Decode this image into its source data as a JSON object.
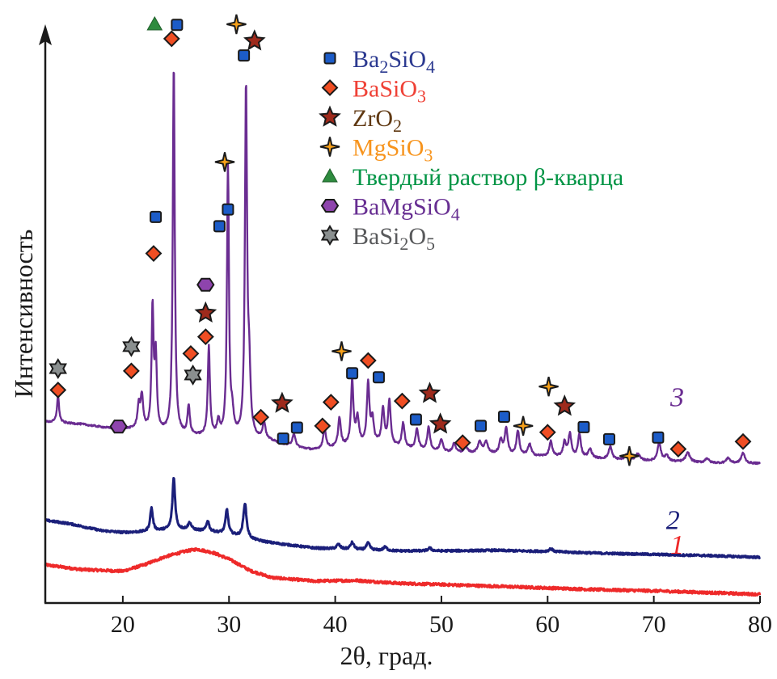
{
  "chart_data": {
    "type": "line",
    "title": "",
    "xlabel": "2θ, град.",
    "ylabel": "Интенсивность",
    "xlim": [
      12.7,
      80
    ],
    "ylim": [
      0,
      100
    ],
    "xticks": [
      20,
      30,
      40,
      50,
      60,
      70,
      80
    ],
    "grid": false,
    "legend_position": "top-right",
    "legend": [
      {
        "phase": "Ba2SiO4",
        "parts": [
          [
            "Ba",
            ""
          ],
          [
            "2",
            "sub"
          ],
          [
            "SiO",
            ""
          ],
          [
            "4",
            "sub"
          ]
        ],
        "marker": "square",
        "color": "#2b3990",
        "fill": "#1c5cc8"
      },
      {
        "phase": "BaSiO3",
        "parts": [
          [
            "BaSiO",
            ""
          ],
          [
            "3",
            "sub"
          ]
        ],
        "marker": "diamond",
        "color": "#ef4136",
        "fill": "#f04e23"
      },
      {
        "phase": "ZrO2",
        "parts": [
          [
            "ZrO",
            ""
          ],
          [
            "2",
            "sub"
          ]
        ],
        "marker": "star5",
        "color": "#603913",
        "fill": "#9e2a1c"
      },
      {
        "phase": "MgSiO3",
        "parts": [
          [
            "MgSiO",
            ""
          ],
          [
            "3",
            "sub"
          ]
        ],
        "marker": "star4",
        "color": "#f7941d",
        "fill": "#f7a11a"
      },
      {
        "phase": "Твердый раствор β-кварца",
        "parts": [
          [
            "Твердый раствор β-кварца",
            ""
          ]
        ],
        "marker": "triangle",
        "color": "#009444",
        "fill": "#2e8b3e"
      },
      {
        "phase": "BaMgSiO4",
        "parts": [
          [
            "BaMgSiO",
            ""
          ],
          [
            "4",
            "sub"
          ]
        ],
        "marker": "hexagon",
        "color": "#662d91",
        "fill": "#8e44ad"
      },
      {
        "phase": "BaSi2O5",
        "parts": [
          [
            "BaSi",
            ""
          ],
          [
            "2",
            "sub"
          ],
          [
            "O",
            ""
          ],
          [
            "5",
            "sub"
          ]
        ],
        "marker": "star6",
        "color": "#58595b",
        "fill": "#8a8f8f"
      }
    ],
    "series": [
      {
        "name": "1",
        "label": "1",
        "color": "#ee2a2a",
        "label_at": [
          72.2,
          8.5
        ],
        "baseline": [
          [
            12.7,
            6.6
          ],
          [
            16,
            5.8
          ],
          [
            20,
            5.5
          ],
          [
            22,
            6.6
          ],
          [
            24,
            8.0
          ],
          [
            26,
            9.0
          ],
          [
            27,
            9.3
          ],
          [
            28.5,
            8.7
          ],
          [
            30,
            7.6
          ],
          [
            32,
            5.6
          ],
          [
            34,
            4.4
          ],
          [
            38,
            3.8
          ],
          [
            42,
            3.9
          ],
          [
            46,
            3.4
          ],
          [
            50,
            3.2
          ],
          [
            55,
            2.9
          ],
          [
            60,
            2.6
          ],
          [
            65,
            2.3
          ],
          [
            70,
            2.1
          ],
          [
            75,
            1.8
          ],
          [
            80,
            1.5
          ]
        ],
        "noise": 0.45,
        "peaks": []
      },
      {
        "name": "2",
        "label": "2",
        "color": "#1b1f7a",
        "label_at": [
          71.8,
          12.8
        ],
        "baseline": [
          [
            12.7,
            14.3
          ],
          [
            15,
            13.7
          ],
          [
            18,
            12.5
          ],
          [
            20,
            12.2
          ],
          [
            22,
            12.3
          ],
          [
            24,
            12.6
          ],
          [
            26,
            12.7
          ],
          [
            28,
            12.4
          ],
          [
            30,
            11.9
          ],
          [
            32,
            11.0
          ],
          [
            34,
            10.4
          ],
          [
            38,
            9.5
          ],
          [
            42,
            9.2
          ],
          [
            46,
            9.0
          ],
          [
            50,
            9.0
          ],
          [
            55,
            9.1
          ],
          [
            60,
            8.9
          ],
          [
            65,
            8.6
          ],
          [
            70,
            8.4
          ],
          [
            75,
            8.2
          ],
          [
            80,
            7.9
          ]
        ],
        "noise": 0.35,
        "peaks": [
          [
            22.7,
            4.0,
            0.15
          ],
          [
            24.8,
            9.0,
            0.15
          ],
          [
            26.3,
            1.2,
            0.18
          ],
          [
            28.0,
            1.8,
            0.15
          ],
          [
            29.8,
            4.2,
            0.15
          ],
          [
            31.5,
            6.0,
            0.18
          ],
          [
            40.3,
            0.8,
            0.2
          ],
          [
            41.6,
            1.2,
            0.2
          ],
          [
            43.1,
            1.2,
            0.2
          ],
          [
            44.7,
            0.6,
            0.2
          ],
          [
            48.9,
            0.5,
            0.2
          ],
          [
            60.3,
            0.5,
            0.2
          ]
        ]
      },
      {
        "name": "3",
        "label": "3",
        "color": "#6a2c91",
        "label_at": [
          72.2,
          34
        ],
        "baseline": [
          [
            12.7,
            31.3
          ],
          [
            16,
            30.9
          ],
          [
            19,
            30.1
          ],
          [
            21,
            30.0
          ],
          [
            23,
            29.7
          ],
          [
            26,
            28.9
          ],
          [
            28,
            28.7
          ],
          [
            30,
            28.6
          ],
          [
            32,
            28.4
          ],
          [
            34,
            27.9
          ],
          [
            36,
            26.9
          ],
          [
            38,
            26.4
          ],
          [
            40,
            26.8
          ],
          [
            42,
            27.2
          ],
          [
            44,
            27.5
          ],
          [
            46,
            26.8
          ],
          [
            48,
            26.4
          ],
          [
            50,
            26.0
          ],
          [
            52,
            25.9
          ],
          [
            55,
            25.7
          ],
          [
            58,
            25.4
          ],
          [
            60,
            25.3
          ],
          [
            63,
            25.1
          ],
          [
            66,
            24.8
          ],
          [
            70,
            24.5
          ],
          [
            75,
            24.2
          ],
          [
            80,
            24.1
          ]
        ],
        "noise": 0.3,
        "peaks": [
          [
            13.9,
            4.6,
            0.12
          ],
          [
            19.7,
            0.9,
            0.15
          ],
          [
            21.5,
            4.0,
            0.14
          ],
          [
            21.8,
            5.6,
            0.14
          ],
          [
            22.8,
            20.9,
            0.11
          ],
          [
            23.1,
            12.5,
            0.12
          ],
          [
            24.8,
            64.1,
            0.11
          ],
          [
            26.2,
            5.0,
            0.13
          ],
          [
            28.1,
            15.5,
            0.12
          ],
          [
            29.0,
            2.5,
            0.15
          ],
          [
            29.9,
            46.7,
            0.11
          ],
          [
            30.3,
            3.5,
            0.15
          ],
          [
            31.6,
            60.2,
            0.12
          ],
          [
            31.9,
            10.0,
            0.14
          ],
          [
            33.3,
            3.0,
            0.16
          ],
          [
            36.1,
            2.2,
            0.18
          ],
          [
            39.0,
            3.5,
            0.16
          ],
          [
            40.4,
            5.0,
            0.15
          ],
          [
            41.6,
            11.0,
            0.14
          ],
          [
            42.1,
            4.5,
            0.16
          ],
          [
            43.1,
            10.5,
            0.14
          ],
          [
            43.5,
            4.0,
            0.15
          ],
          [
            44.5,
            6.0,
            0.15
          ],
          [
            45.1,
            7.5,
            0.15
          ],
          [
            46.4,
            4.2,
            0.16
          ],
          [
            47.7,
            3.5,
            0.16
          ],
          [
            48.8,
            4.0,
            0.16
          ],
          [
            50.0,
            2.2,
            0.18
          ],
          [
            51.2,
            1.5,
            0.18
          ],
          [
            52.3,
            1.0,
            0.2
          ],
          [
            53.6,
            2.0,
            0.2
          ],
          [
            54.2,
            2.0,
            0.2
          ],
          [
            55.6,
            2.4,
            0.18
          ],
          [
            56.1,
            4.5,
            0.16
          ],
          [
            57.2,
            4.2,
            0.16
          ],
          [
            58.3,
            2.0,
            0.18
          ],
          [
            60.3,
            2.6,
            0.16
          ],
          [
            61.6,
            2.5,
            0.17
          ],
          [
            62.1,
            3.9,
            0.16
          ],
          [
            63.0,
            4.0,
            0.16
          ],
          [
            64.0,
            1.5,
            0.2
          ],
          [
            65.9,
            2.2,
            0.18
          ],
          [
            67.5,
            1.0,
            0.2
          ],
          [
            68.5,
            1.2,
            0.2
          ],
          [
            70.5,
            3.3,
            0.18
          ],
          [
            71.2,
            1.0,
            0.22
          ],
          [
            73.2,
            1.6,
            0.25
          ],
          [
            75.0,
            0.8,
            0.2
          ],
          [
            77.0,
            0.9,
            0.2
          ],
          [
            78.4,
            1.8,
            0.2
          ]
        ]
      }
    ],
    "markers": [
      {
        "phase": "BaSiO3",
        "x": 13.9,
        "y": 36.8
      },
      {
        "phase": "BaSi2O5",
        "x": 13.9,
        "y": 40.5
      },
      {
        "phase": "BaMgSiO4",
        "x": 19.6,
        "y": 30.5
      },
      {
        "phase": "BaSiO3",
        "x": 20.8,
        "y": 40.1
      },
      {
        "phase": "BaSi2O5",
        "x": 20.8,
        "y": 44.3
      },
      {
        "phase": "BaSiO3",
        "x": 22.9,
        "y": 60.4
      },
      {
        "phase": "Ba2SiO4",
        "x": 23.1,
        "y": 66.7
      },
      {
        "phase": "BaSiO3",
        "x": 24.6,
        "y": 97.5
      },
      {
        "phase": "Твердый раствор β-кварца",
        "x": 23.0,
        "y": 100.0
      },
      {
        "phase": "Ba2SiO4",
        "x": 25.1,
        "y": 99.9
      },
      {
        "phase": "BaSi2O5",
        "x": 26.6,
        "y": 39.4
      },
      {
        "phase": "BaSiO3",
        "x": 26.4,
        "y": 43.1
      },
      {
        "phase": "BaSiO3",
        "x": 27.8,
        "y": 46.0
      },
      {
        "phase": "ZrO2",
        "x": 27.8,
        "y": 50.1
      },
      {
        "phase": "BaMgSiO4",
        "x": 27.8,
        "y": 55.0
      },
      {
        "phase": "Ba2SiO4",
        "x": 29.1,
        "y": 65.1
      },
      {
        "phase": "Ba2SiO4",
        "x": 29.9,
        "y": 68.0
      },
      {
        "phase": "MgSiO3",
        "x": 29.6,
        "y": 76.2
      },
      {
        "phase": "Ba2SiO4",
        "x": 31.4,
        "y": 94.6
      },
      {
        "phase": "MgSiO3",
        "x": 30.7,
        "y": 100.0
      },
      {
        "phase": "ZrO2",
        "x": 32.4,
        "y": 97.1
      },
      {
        "phase": "BaSiO3",
        "x": 33.0,
        "y": 32.1
      },
      {
        "phase": "ZrO2",
        "x": 35.0,
        "y": 34.5
      },
      {
        "phase": "Ba2SiO4",
        "x": 35.1,
        "y": 28.4
      },
      {
        "phase": "Ba2SiO4",
        "x": 36.4,
        "y": 30.3
      },
      {
        "phase": "BaSiO3",
        "x": 38.8,
        "y": 30.6
      },
      {
        "phase": "BaSiO3",
        "x": 39.6,
        "y": 34.7
      },
      {
        "phase": "MgSiO3",
        "x": 40.6,
        "y": 43.5
      },
      {
        "phase": "Ba2SiO4",
        "x": 41.6,
        "y": 39.7
      },
      {
        "phase": "BaSiO3",
        "x": 43.1,
        "y": 41.9
      },
      {
        "phase": "Ba2SiO4",
        "x": 44.1,
        "y": 39.0
      },
      {
        "phase": "BaSiO3",
        "x": 46.3,
        "y": 34.9
      },
      {
        "phase": "Ba2SiO4",
        "x": 47.6,
        "y": 31.7
      },
      {
        "phase": "ZrO2",
        "x": 48.9,
        "y": 36.2
      },
      {
        "phase": "ZrO2",
        "x": 49.9,
        "y": 30.9
      },
      {
        "phase": "BaSiO3",
        "x": 52.0,
        "y": 27.7
      },
      {
        "phase": "Ba2SiO4",
        "x": 53.7,
        "y": 30.6
      },
      {
        "phase": "Ba2SiO4",
        "x": 55.9,
        "y": 32.2
      },
      {
        "phase": "MgSiO3",
        "x": 57.7,
        "y": 30.6
      },
      {
        "phase": "BaSiO3",
        "x": 60.0,
        "y": 29.5
      },
      {
        "phase": "MgSiO3",
        "x": 60.1,
        "y": 37.4
      },
      {
        "phase": "ZrO2",
        "x": 61.6,
        "y": 34.0
      },
      {
        "phase": "Ba2SiO4",
        "x": 63.4,
        "y": 30.4
      },
      {
        "phase": "Ba2SiO4",
        "x": 65.8,
        "y": 28.3
      },
      {
        "phase": "MgSiO3",
        "x": 67.7,
        "y": 25.4
      },
      {
        "phase": "BaSiO3",
        "x": 72.3,
        "y": 26.6
      },
      {
        "phase": "Ba2SiO4",
        "x": 70.4,
        "y": 28.6
      },
      {
        "phase": "BaSiO3",
        "x": 78.4,
        "y": 27.9
      }
    ]
  }
}
